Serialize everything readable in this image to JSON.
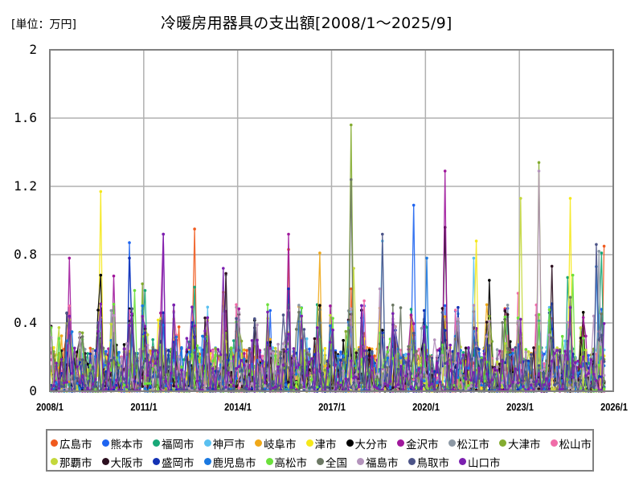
{
  "header": {
    "unit_label": "[単位：万円]",
    "title": "冷暖房用器具の支出額[2008/1～2025/9]"
  },
  "axes": {
    "y_ticks": [
      "2",
      "1.6",
      "1.2",
      "0.8",
      "0.4",
      "0"
    ],
    "x_ticks": [
      "2008/1",
      "2011/1",
      "2014/1",
      "2017/1",
      "2020/1",
      "2023/1",
      "2026/1"
    ]
  },
  "legend": {
    "rows": [
      [
        {
          "label": "広島市",
          "color": "#f05a1e"
        },
        {
          "label": "熊本市",
          "color": "#1e64f0"
        },
        {
          "label": "福岡市",
          "color": "#18a878"
        },
        {
          "label": "神戸市",
          "color": "#5ac0f0"
        },
        {
          "label": "岐阜市",
          "color": "#f0a818"
        },
        {
          "label": "津市",
          "color": "#f5e81a"
        },
        {
          "label": "大分市",
          "color": "#000000"
        },
        {
          "label": "金沢市",
          "color": "#a0189c"
        },
        {
          "label": "松江市",
          "color": "#8c98a4"
        },
        {
          "label": "大津市",
          "color": "#84ac30"
        },
        {
          "label": "松山市",
          "color": "#f06ca8"
        }
      ],
      [
        {
          "label": "那覇市",
          "color": "#c4d83c"
        },
        {
          "label": "大阪市",
          "color": "#2c1020"
        },
        {
          "label": "盛岡市",
          "color": "#1432b4"
        },
        {
          "label": "鹿児島市",
          "color": "#1a78e0"
        },
        {
          "label": "高松市",
          "color": "#6ce03c"
        },
        {
          "label": "全国",
          "color": "#6c7864"
        },
        {
          "label": "福島市",
          "color": "#b494bc"
        },
        {
          "label": "鳥取市",
          "color": "#4c5488"
        },
        {
          "label": "山口市",
          "color": "#7c20b0"
        }
      ]
    ]
  },
  "chart_data": {
    "type": "line",
    "title": "冷暖房用器具の支出額[2008/1～2025/9]",
    "ylabel": "[単位：万円]",
    "xlabel": "",
    "ylim": [
      0,
      2
    ],
    "xlim": [
      "2008/1",
      "2026/1"
    ],
    "y_ticks": [
      0,
      0.4,
      0.8,
      1.2,
      1.6,
      2
    ],
    "x_ticks": [
      "2008/1",
      "2011/1",
      "2014/1",
      "2017/1",
      "2020/1",
      "2023/1",
      "2026/1"
    ],
    "grid": true,
    "legend_position": "bottom",
    "period": "2008/1 to 2025/9 monthly",
    "series": [
      {
        "name": "広島市",
        "color": "#f05a1e",
        "peaks": [
          [
            "2012/8",
            0.95
          ],
          [
            "2015/8",
            0.83
          ],
          [
            "2017/8",
            0.6
          ],
          [
            "2025/9",
            0.85
          ]
        ]
      },
      {
        "name": "熊本市",
        "color": "#1e64f0",
        "peaks": [
          [
            "2010/7",
            0.87
          ],
          [
            "2019/8",
            1.09
          ],
          [
            "2025/8",
            0.48
          ]
        ]
      },
      {
        "name": "福岡市",
        "color": "#18a878",
        "peaks": [
          [
            "2011/1",
            0.59
          ],
          [
            "2012/8",
            0.61
          ],
          [
            "2025/8",
            0.81
          ]
        ]
      },
      {
        "name": "神戸市",
        "color": "#5ac0f0",
        "peaks": [
          [
            "2018/8",
            0.88
          ],
          [
            "2021/7",
            0.78
          ]
        ]
      },
      {
        "name": "岐阜市",
        "color": "#f0a818",
        "peaks": [
          [
            "2016/8",
            0.81
          ],
          [
            "2013/7",
            0.58
          ]
        ]
      },
      {
        "name": "津市",
        "color": "#f5e81a",
        "peaks": [
          [
            "2009/8",
            1.17
          ],
          [
            "2021/8",
            0.88
          ],
          [
            "2024/8",
            1.13
          ]
        ]
      },
      {
        "name": "大分市",
        "color": "#000000",
        "peaks": [
          [
            "2009/8",
            0.68
          ],
          [
            "2020/8",
            0.96
          ],
          [
            "2022/1",
            0.65
          ]
        ]
      },
      {
        "name": "金沢市",
        "color": "#a0189c",
        "peaks": [
          [
            "2008/8",
            0.78
          ],
          [
            "2011/8",
            0.92
          ],
          [
            "2015/8",
            0.92
          ],
          [
            "2020/8",
            1.29
          ]
        ]
      },
      {
        "name": "松江市",
        "color": "#8c98a4",
        "peaks": [
          [
            "2013/8",
            0.68
          ],
          [
            "2025/7",
            0.82
          ]
        ]
      },
      {
        "name": "大津市",
        "color": "#84ac30",
        "peaks": [
          [
            "2017/8",
            1.56
          ],
          [
            "2023/8",
            1.34
          ]
        ]
      },
      {
        "name": "松山市",
        "color": "#f06ca8",
        "peaks": [
          [
            "2008/8",
            0.5
          ],
          [
            "2018/1",
            0.53
          ]
        ]
      },
      {
        "name": "那覇市",
        "color": "#c4d83c",
        "peaks": [
          [
            "2023/1",
            1.13
          ],
          [
            "2017/9",
            0.72
          ]
        ]
      },
      {
        "name": "大阪市",
        "color": "#2c1020",
        "peaks": [
          [
            "2013/8",
            0.69
          ],
          [
            "2022/7",
            0.47
          ]
        ]
      },
      {
        "name": "盛岡市",
        "color": "#1432b4",
        "peaks": [
          [
            "2010/7",
            0.78
          ],
          [
            "2015/8",
            0.6
          ]
        ]
      },
      {
        "name": "鹿児島市",
        "color": "#1a78e0",
        "peaks": [
          [
            "2020/1",
            0.78
          ],
          [
            "2025/6",
            0.73
          ]
        ]
      },
      {
        "name": "高松市",
        "color": "#6ce03c",
        "peaks": [
          [
            "2024/9",
            0.68
          ],
          [
            "2010/9",
            0.59
          ]
        ]
      },
      {
        "name": "全国",
        "color": "#6c7864",
        "peaks": [
          [
            "2017/8",
            1.24
          ],
          [
            "2024/8",
            0.55
          ]
        ]
      },
      {
        "name": "福島市",
        "color": "#b494bc",
        "peaks": [
          [
            "2023/8",
            1.29
          ],
          [
            "2018/7",
            0.6
          ]
        ]
      },
      {
        "name": "鳥取市",
        "color": "#4c5488",
        "peaks": [
          [
            "2018/8",
            0.92
          ],
          [
            "2025/6",
            0.86
          ]
        ]
      },
      {
        "name": "山口市",
        "color": "#7c20b0",
        "peaks": [
          [
            "2011/8",
            0.92
          ],
          [
            "2013/7",
            0.72
          ]
        ]
      }
    ],
    "typical_baseline_range": [
      0,
      0.4
    ],
    "random_seed": 20250901
  }
}
